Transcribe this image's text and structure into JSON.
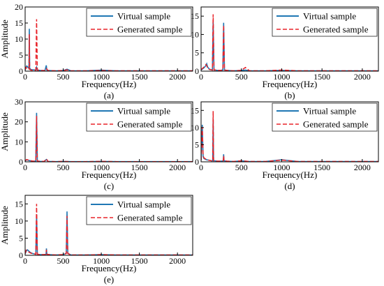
{
  "figure": {
    "panels_count": 5
  },
  "colors": {
    "virtual": "#1f77b4",
    "generated": "#e8232a",
    "axis": "#000000"
  },
  "chart_data": [
    {
      "type": "line",
      "label": "(a)",
      "xlabel": "Frequency(Hz)",
      "ylabel": "Amplitude",
      "xlim": [
        0,
        2200
      ],
      "ylim": [
        0,
        20
      ],
      "xticks": [
        0,
        500,
        1000,
        1500,
        2000
      ],
      "yticks": [
        0,
        5,
        10,
        15,
        20
      ],
      "legend": "top-right",
      "series": [
        {
          "name": "Virtual sample",
          "style": "solid",
          "x": [
            0,
            10,
            20,
            30,
            40,
            50,
            55,
            60,
            70,
            80,
            100,
            120,
            140,
            150,
            160,
            180,
            200,
            230,
            260,
            278,
            285,
            300,
            400,
            500,
            550,
            600,
            800,
            1000,
            1200,
            1400,
            1600,
            1800,
            2000,
            2200
          ],
          "y": [
            0.3,
            1.0,
            1.6,
            1.4,
            1.1,
            0.9,
            13.2,
            1.0,
            0.6,
            0.5,
            0.4,
            0.4,
            0.3,
            1.2,
            0.3,
            0.3,
            0.2,
            0.2,
            0.2,
            1.8,
            0.3,
            0.2,
            0.1,
            0.2,
            0.6,
            0.1,
            0.1,
            0.3,
            0.1,
            0.1,
            0.1,
            0.1,
            0.1,
            0.1
          ]
        },
        {
          "name": "Generated sample",
          "style": "dashed",
          "x": [
            0,
            10,
            20,
            30,
            40,
            50,
            55,
            60,
            70,
            80,
            100,
            120,
            140,
            150,
            160,
            180,
            200,
            230,
            260,
            280,
            300,
            400,
            500,
            550,
            600,
            800,
            1000,
            1200,
            1400,
            1600,
            1800,
            2000,
            2200
          ],
          "y": [
            0.4,
            1.2,
            1.0,
            0.8,
            0.7,
            0.6,
            11.5,
            0.6,
            0.4,
            0.3,
            0.3,
            0.3,
            0.3,
            16.2,
            0.3,
            0.3,
            0.2,
            0.2,
            0.2,
            0.8,
            0.2,
            0.1,
            0.2,
            0.4,
            0.1,
            0.1,
            0.2,
            0.1,
            0.1,
            0.1,
            0.1,
            0.1,
            0.1
          ]
        }
      ]
    },
    {
      "type": "line",
      "label": "(b)",
      "xlabel": "Frequency(Hz)",
      "ylabel": "",
      "xlim": [
        0,
        2200
      ],
      "ylim": [
        0,
        17.5
      ],
      "xticks": [
        0,
        500,
        1000,
        1500,
        2000
      ],
      "yticks": [
        0,
        5,
        10,
        15
      ],
      "legend": "top-right",
      "series": [
        {
          "name": "Virtual sample",
          "style": "solid",
          "x": [
            0,
            20,
            40,
            60,
            70,
            80,
            100,
            120,
            140,
            150,
            160,
            180,
            200,
            240,
            270,
            280,
            290,
            320,
            400,
            500,
            550,
            600,
            800,
            1000,
            1200,
            1400,
            1600,
            1800,
            2000,
            2200
          ],
          "y": [
            0.3,
            0.6,
            1.0,
            1.5,
            2.0,
            1.2,
            0.6,
            0.4,
            0.3,
            13.5,
            0.3,
            0.3,
            0.2,
            0.2,
            0.3,
            13.2,
            0.3,
            0.2,
            0.1,
            0.2,
            0.3,
            0.1,
            0.1,
            0.2,
            0.1,
            0.1,
            0.1,
            0.1,
            0.1,
            0.1
          ]
        },
        {
          "name": "Generated sample",
          "style": "dashed",
          "x": [
            0,
            20,
            40,
            60,
            70,
            80,
            100,
            120,
            140,
            150,
            160,
            180,
            200,
            240,
            270,
            280,
            290,
            320,
            400,
            500,
            550,
            600,
            800,
            1000,
            1200,
            1400,
            1600,
            1800,
            2000,
            2200
          ],
          "y": [
            0.4,
            0.8,
            1.2,
            1.8,
            1.5,
            1.0,
            0.5,
            0.4,
            0.3,
            15.5,
            0.3,
            0.3,
            0.2,
            0.2,
            0.3,
            12.5,
            0.3,
            0.2,
            0.1,
            0.2,
            1.0,
            0.1,
            0.1,
            0.3,
            0.1,
            0.1,
            0.1,
            0.1,
            0.1,
            0.1
          ]
        }
      ]
    },
    {
      "type": "line",
      "label": "(c)",
      "xlabel": "Frequency(Hz)",
      "ylabel": "Amplitude",
      "xlim": [
        0,
        2200
      ],
      "ylim": [
        0,
        30
      ],
      "xticks": [
        0,
        500,
        1000,
        1500,
        2000
      ],
      "yticks": [
        0,
        10,
        20,
        30
      ],
      "legend": "top-right",
      "series": [
        {
          "name": "Virtual sample",
          "style": "solid",
          "x": [
            0,
            20,
            40,
            60,
            80,
            100,
            120,
            140,
            150,
            160,
            180,
            200,
            250,
            280,
            300,
            400,
            500,
            600,
            800,
            1000,
            1200,
            1400,
            1600,
            1800,
            2000,
            2200
          ],
          "y": [
            0.4,
            1.0,
            0.8,
            0.6,
            0.5,
            0.4,
            0.3,
            0.3,
            24.5,
            0.3,
            0.3,
            0.2,
            0.2,
            1.2,
            0.2,
            0.1,
            0.2,
            0.1,
            0.1,
            0.2,
            0.1,
            0.1,
            0.1,
            0.1,
            0.1,
            0.1
          ]
        },
        {
          "name": "Generated sample",
          "style": "dashed",
          "x": [
            0,
            20,
            40,
            60,
            80,
            100,
            120,
            140,
            150,
            160,
            180,
            200,
            250,
            280,
            300,
            400,
            500,
            600,
            800,
            1000,
            1200,
            1400,
            1600,
            1800,
            2000,
            2200
          ],
          "y": [
            0.5,
            1.2,
            0.9,
            0.6,
            0.5,
            0.4,
            0.3,
            0.3,
            23.0,
            0.3,
            0.3,
            0.2,
            0.2,
            1.5,
            0.2,
            0.1,
            0.2,
            0.1,
            0.1,
            0.2,
            0.1,
            0.1,
            0.1,
            0.1,
            0.1,
            0.1
          ]
        }
      ]
    },
    {
      "type": "line",
      "label": "(d)",
      "xlabel": "Frequency(Hz)",
      "ylabel": "",
      "xlim": [
        0,
        2200
      ],
      "ylim": [
        0,
        17.5
      ],
      "xticks": [
        0,
        500,
        1000,
        1500,
        2000
      ],
      "yticks": [
        0,
        5,
        10,
        15
      ],
      "legend": "top-right",
      "series": [
        {
          "name": "Virtual sample",
          "style": "solid",
          "x": [
            0,
            15,
            25,
            35,
            50,
            70,
            90,
            110,
            130,
            145,
            150,
            155,
            170,
            200,
            250,
            275,
            280,
            285,
            320,
            400,
            500,
            600,
            800,
            1000,
            1200,
            1400,
            1600,
            1800,
            2000,
            2200
          ],
          "y": [
            0.4,
            10.8,
            1.5,
            1.0,
            0.8,
            0.6,
            0.5,
            0.4,
            0.3,
            0.3,
            12.5,
            0.3,
            0.3,
            0.2,
            0.2,
            0.3,
            2.2,
            0.3,
            0.2,
            0.1,
            0.3,
            0.1,
            0.1,
            0.6,
            0.1,
            0.1,
            0.1,
            0.1,
            0.1,
            0.1
          ]
        },
        {
          "name": "Generated sample",
          "style": "dashed",
          "x": [
            0,
            15,
            25,
            35,
            50,
            70,
            90,
            110,
            130,
            145,
            150,
            155,
            170,
            200,
            250,
            275,
            280,
            285,
            320,
            400,
            500,
            600,
            800,
            1000,
            1200,
            1400,
            1600,
            1800,
            2000,
            2200
          ],
          "y": [
            0.5,
            10.2,
            1.8,
            1.2,
            0.9,
            0.7,
            0.5,
            0.4,
            0.3,
            0.3,
            14.8,
            0.3,
            0.3,
            0.2,
            0.2,
            0.3,
            1.8,
            0.3,
            0.2,
            0.1,
            0.3,
            0.1,
            0.1,
            0.5,
            0.1,
            0.1,
            0.1,
            0.1,
            0.1,
            0.1
          ]
        }
      ]
    },
    {
      "type": "line",
      "label": "(e)",
      "xlabel": "Frequency(Hz)",
      "ylabel": "Amplitude",
      "xlim": [
        0,
        2200
      ],
      "ylim": [
        0,
        17.5
      ],
      "xticks": [
        0,
        500,
        1000,
        1500,
        2000
      ],
      "yticks": [
        0,
        5,
        10,
        15
      ],
      "legend": "top-right",
      "series": [
        {
          "name": "Virtual sample",
          "style": "solid",
          "x": [
            0,
            15,
            30,
            45,
            60,
            80,
            100,
            120,
            140,
            150,
            160,
            200,
            250,
            275,
            280,
            285,
            320,
            400,
            500,
            540,
            550,
            560,
            600,
            800,
            1000,
            1200,
            1400,
            1600,
            1800,
            2000,
            2200
          ],
          "y": [
            0.4,
            1.2,
            1.6,
            1.3,
            1.0,
            0.7,
            0.5,
            0.4,
            0.3,
            12.0,
            0.3,
            0.2,
            0.2,
            0.3,
            2.0,
            0.3,
            0.2,
            0.1,
            0.2,
            0.6,
            12.8,
            0.6,
            0.1,
            0.1,
            0.2,
            0.1,
            0.1,
            0.1,
            0.1,
            0.1,
            0.1
          ]
        },
        {
          "name": "Generated sample",
          "style": "dashed",
          "x": [
            0,
            15,
            30,
            45,
            60,
            80,
            100,
            120,
            140,
            150,
            160,
            200,
            250,
            275,
            280,
            285,
            320,
            400,
            500,
            540,
            550,
            560,
            600,
            800,
            1000,
            1200,
            1400,
            1600,
            1800,
            2000,
            2200
          ],
          "y": [
            0.5,
            1.5,
            1.2,
            1.0,
            0.8,
            0.6,
            0.5,
            0.4,
            0.3,
            15.0,
            0.3,
            0.2,
            0.2,
            0.3,
            1.6,
            0.3,
            0.2,
            0.1,
            0.2,
            0.5,
            11.5,
            0.5,
            0.1,
            0.1,
            0.2,
            0.1,
            0.1,
            0.1,
            0.1,
            0.1,
            0.1
          ]
        }
      ]
    }
  ]
}
